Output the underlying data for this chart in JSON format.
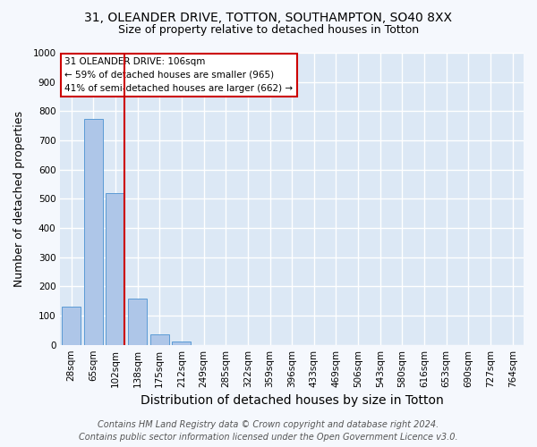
{
  "title1": "31, OLEANDER DRIVE, TOTTON, SOUTHAMPTON, SO40 8XX",
  "title2": "Size of property relative to detached houses in Totton",
  "xlabel": "Distribution of detached houses by size in Totton",
  "ylabel": "Number of detached properties",
  "categories": [
    "28sqm",
    "65sqm",
    "102sqm",
    "138sqm",
    "175sqm",
    "212sqm",
    "249sqm",
    "285sqm",
    "322sqm",
    "359sqm",
    "396sqm",
    "433sqm",
    "469sqm",
    "506sqm",
    "543sqm",
    "580sqm",
    "616sqm",
    "653sqm",
    "690sqm",
    "727sqm",
    "764sqm"
  ],
  "values": [
    130,
    775,
    520,
    158,
    35,
    10,
    0,
    0,
    0,
    0,
    0,
    0,
    0,
    0,
    0,
    0,
    0,
    0,
    0,
    0,
    0
  ],
  "bar_color": "#aec6e8",
  "bar_edgecolor": "#5b9bd5",
  "vline_x": 2.4,
  "vline_color": "#cc0000",
  "ylim": [
    0,
    1000
  ],
  "yticks": [
    0,
    100,
    200,
    300,
    400,
    500,
    600,
    700,
    800,
    900,
    1000
  ],
  "annotation_line1": "31 OLEANDER DRIVE: 106sqm",
  "annotation_line2": "← 59% of detached houses are smaller (965)",
  "annotation_line3": "41% of semi-detached houses are larger (662) →",
  "annotation_box_color": "#cc0000",
  "footer1": "Contains HM Land Registry data © Crown copyright and database right 2024.",
  "footer2": "Contains public sector information licensed under the Open Government Licence v3.0.",
  "plot_bg_color": "#dce8f5",
  "fig_bg_color": "#f5f8fd",
  "grid_color": "#ffffff",
  "title1_fontsize": 10,
  "title2_fontsize": 9,
  "xlabel_fontsize": 10,
  "ylabel_fontsize": 9,
  "tick_fontsize": 7.5,
  "annot_fontsize": 7.5,
  "footer_fontsize": 7
}
